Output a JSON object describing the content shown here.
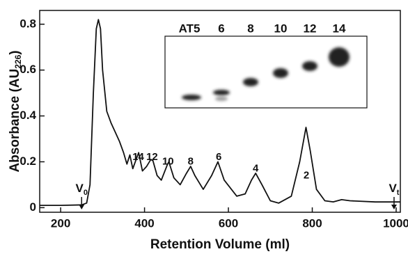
{
  "chart_data": {
    "type": "line",
    "x_label": "Retention Volume (ml)",
    "y_label": {
      "text": "Absorbance (AU",
      "sub": "226",
      "tail": ")"
    },
    "xlim": [
      150,
      1010
    ],
    "ylim": [
      -0.02,
      0.86
    ],
    "xticks": [
      200,
      400,
      600,
      800,
      1000
    ],
    "yticks": [
      0,
      0.2,
      0.4,
      0.6,
      0.8
    ],
    "color": "#111111",
    "x": [
      150,
      200,
      250,
      262,
      270,
      278,
      285,
      290,
      295,
      300,
      310,
      320,
      330,
      340,
      350,
      358,
      365,
      372,
      380,
      386,
      395,
      405,
      415,
      420,
      430,
      440,
      455,
      458,
      470,
      485,
      500,
      510,
      520,
      540,
      560,
      575,
      590,
      620,
      640,
      655,
      665,
      680,
      700,
      720,
      750,
      770,
      785,
      795,
      810,
      830,
      850,
      870,
      890,
      950,
      1000,
      1010
    ],
    "values": [
      0.01,
      0.01,
      0.012,
      0.02,
      0.1,
      0.5,
      0.78,
      0.82,
      0.78,
      0.6,
      0.42,
      0.37,
      0.33,
      0.29,
      0.24,
      0.19,
      0.23,
      0.17,
      0.21,
      0.24,
      0.16,
      0.18,
      0.21,
      0.205,
      0.14,
      0.12,
      0.19,
      0.2,
      0.13,
      0.1,
      0.15,
      0.18,
      0.14,
      0.08,
      0.14,
      0.2,
      0.12,
      0.05,
      0.06,
      0.12,
      0.15,
      0.1,
      0.03,
      0.02,
      0.05,
      0.2,
      0.35,
      0.25,
      0.08,
      0.03,
      0.025,
      0.035,
      0.03,
      0.025,
      0.025,
      0.025
    ],
    "annotations": [
      {
        "text": "14",
        "x": 385,
        "y": 0.22
      },
      {
        "text": "12",
        "x": 418,
        "y": 0.22
      },
      {
        "text": "10",
        "x": 456,
        "y": 0.2
      },
      {
        "text": "8",
        "x": 510,
        "y": 0.2
      },
      {
        "text": "6",
        "x": 577,
        "y": 0.22
      },
      {
        "text": "4",
        "x": 665,
        "y": 0.17
      },
      {
        "text": "2",
        "x": 786,
        "y": 0.14
      },
      {
        "text": "V",
        "sub": "0",
        "x": 250,
        "y": 0.08,
        "arrow": true
      },
      {
        "text": "V",
        "sub": "t",
        "x": 995,
        "y": 0.08,
        "arrow": true
      }
    ]
  },
  "inset": {
    "lanes": [
      "AT5",
      "6",
      "8",
      "10",
      "12",
      "14"
    ]
  }
}
